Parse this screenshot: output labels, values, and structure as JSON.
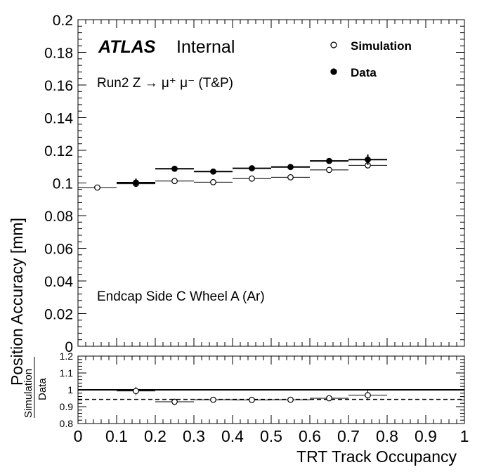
{
  "header": {
    "atlas": "ATLAS",
    "internal": "Internal",
    "process": "Run2 Z → μ⁺ μ⁻ (T&P)",
    "region": "Endcap Side C Wheel A (Ar)"
  },
  "legend": {
    "simulation": "Simulation",
    "data": "Data"
  },
  "chart_data": [
    {
      "type": "scatter",
      "xlabel": "TRT Track Occupancy",
      "ylabel": "Position Accuracy [mm]",
      "xlim": [
        0,
        1
      ],
      "ylim": [
        0,
        0.2
      ],
      "x_ticks": [
        "0",
        "0.1",
        "0.2",
        "0.3",
        "0.4",
        "0.5",
        "0.6",
        "0.7",
        "0.8",
        "0.9",
        "1"
      ],
      "y_ticks": [
        "0",
        "0.02",
        "0.04",
        "0.06",
        "0.08",
        "0.1",
        "0.12",
        "0.14",
        "0.16",
        "0.18",
        "0.2"
      ],
      "grid": false,
      "legend_position": "top-right",
      "series": [
        {
          "name": "Simulation",
          "marker": "open-circle",
          "x": [
            0.05,
            0.15,
            0.25,
            0.35,
            0.45,
            0.55,
            0.65,
            0.75
          ],
          "xerr": 0.05,
          "y": [
            0.0972,
            0.0995,
            0.1012,
            0.1005,
            0.1027,
            0.1035,
            0.108,
            0.1108
          ],
          "yerr": [
            0.0002,
            0.0003,
            0.0003,
            0.0003,
            0.0004,
            0.0005,
            0.0008,
            0.002
          ]
        },
        {
          "name": "Data",
          "marker": "filled-circle",
          "x": [
            0.15,
            0.25,
            0.35,
            0.45,
            0.55,
            0.65,
            0.75
          ],
          "xerr": 0.05,
          "y": [
            0.1002,
            0.1087,
            0.107,
            0.109,
            0.1098,
            0.1135,
            0.1143
          ],
          "yerr": [
            0.0025,
            0.0004,
            0.0004,
            0.0004,
            0.0005,
            0.0008,
            0.0032
          ]
        }
      ]
    },
    {
      "type": "scatter",
      "xlabel": "TRT Track Occupancy",
      "ylabel_top": "Simulation",
      "ylabel_bottom": "Data",
      "xlim": [
        0,
        1
      ],
      "ylim": [
        0.8,
        1.2
      ],
      "y_ticks": [
        "0.8",
        "0.9",
        "1",
        "1.1",
        "1.2"
      ],
      "reference_line": 1.0,
      "average_line": 0.943,
      "series": [
        {
          "name": "Simulation/Data",
          "marker": "open-circle",
          "x": [
            0.15,
            0.25,
            0.35,
            0.45,
            0.55,
            0.65,
            0.75
          ],
          "xerr": 0.05,
          "y": [
            0.993,
            0.929,
            0.941,
            0.94,
            0.941,
            0.95,
            0.968
          ],
          "yerr": [
            0.025,
            0.004,
            0.004,
            0.005,
            0.006,
            0.008,
            0.03
          ]
        }
      ]
    }
  ]
}
